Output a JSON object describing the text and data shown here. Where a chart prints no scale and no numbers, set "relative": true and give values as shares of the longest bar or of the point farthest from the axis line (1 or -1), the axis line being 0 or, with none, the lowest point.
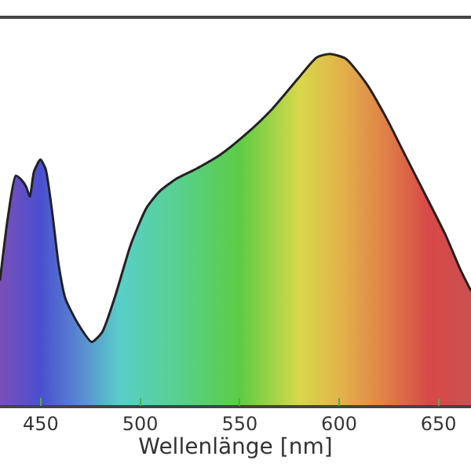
{
  "chart_data": {
    "type": "area",
    "relative": true,
    "xlabel": "Wellenlänge [nm]",
    "x": [
      429.5,
      433.4,
      437.4,
      440.0,
      442.7,
      444.5,
      446.6,
      449.8,
      452.4,
      455.8,
      459.0,
      462.4,
      469.0,
      475.6,
      480.8,
      487.4,
      495.3,
      503.2,
      509.8,
      517.7,
      528.2,
      540.0,
      553.2,
      566.3,
      579.5,
      588.7,
      595.3,
      603.2,
      613.7,
      624.2,
      632.1,
      642.7,
      653.2,
      661.1,
      666.3
    ],
    "series": [
      {
        "color": "#222222",
        "values": [
          0.355,
          0.532,
          0.653,
          0.643,
          0.621,
          0.594,
          0.665,
          0.699,
          0.673,
          0.547,
          0.399,
          0.303,
          0.229,
          0.18,
          0.207,
          0.31,
          0.458,
          0.562,
          0.609,
          0.643,
          0.673,
          0.712,
          0.772,
          0.843,
          0.931,
          0.99,
          1.0,
          0.987,
          0.916,
          0.813,
          0.724,
          0.606,
          0.488,
          0.384,
          0.325
        ]
      }
    ],
    "xlim": [
      429.5,
      666.3
    ],
    "xticks": [
      450,
      500,
      550,
      600,
      650
    ]
  }
}
